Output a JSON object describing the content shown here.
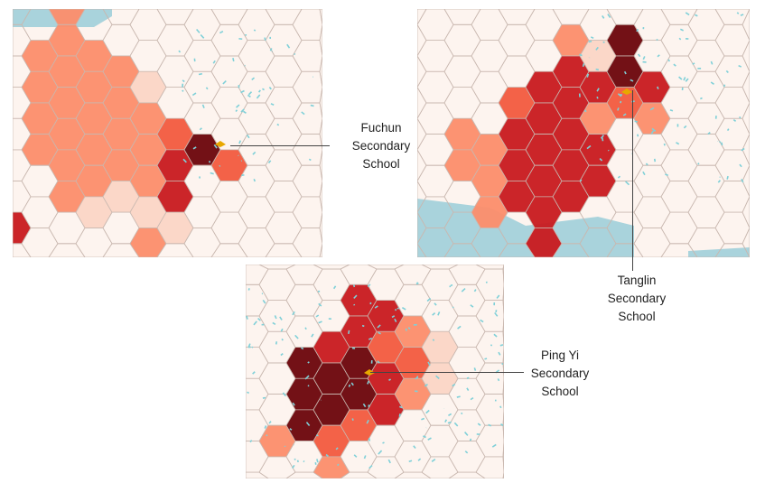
{
  "panels": [
    {
      "name": "fuchun-map",
      "label": [
        "Fuchun",
        "Secondary",
        "School"
      ]
    },
    {
      "name": "tanglin-map",
      "label": [
        "Tanglin",
        "Secondary",
        "School"
      ]
    },
    {
      "name": "ping-yi-map",
      "label": [
        "Ping Yi",
        "Secondary",
        "School"
      ]
    }
  ],
  "colors": {
    "background": "#fdf4ef",
    "level1": "#fbd5c5",
    "level2": "#fc8d6a",
    "level3": "#f25a3e",
    "level4": "#c8191e",
    "level5": "#6b0409",
    "water": "#a9d3dc",
    "buildings": "#7fd0d8",
    "school_icon": "#e8a800",
    "park_icon": "#2e8b2e"
  }
}
